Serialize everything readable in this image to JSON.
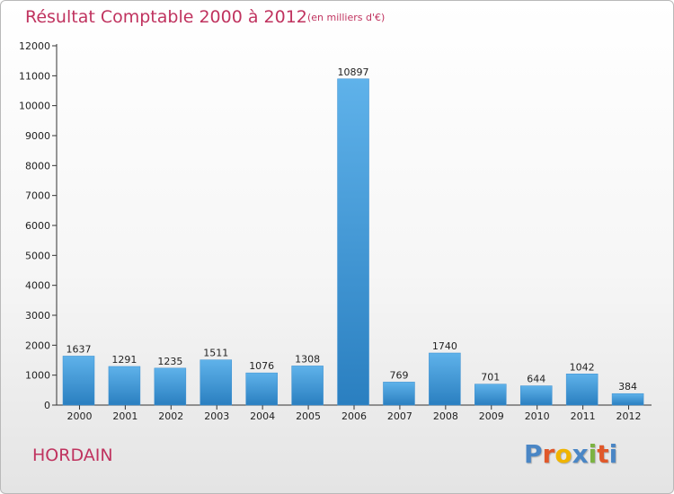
{
  "header": {
    "title": "Résultat Comptable 2000 à 2012",
    "subtitle": "(en milliers d'€)"
  },
  "footer": {
    "town": "HORDAIN",
    "logo": "Proxiti"
  },
  "colors": {
    "title": "#c0335f",
    "bar_top": "#5fb2ea",
    "bar_bottom": "#2a7fc0",
    "logo_letters": [
      "#4a86c5",
      "#e0582a",
      "#f0b400",
      "#4a86c5",
      "#7cb342",
      "#e0582a",
      "#4a86c5"
    ]
  },
  "chart_data": {
    "type": "bar",
    "title": "Résultat Comptable 2000 à 2012",
    "subtitle": "(en milliers d'€)",
    "xlabel": "",
    "ylabel": "",
    "categories": [
      "2000",
      "2001",
      "2002",
      "2003",
      "2004",
      "2005",
      "2006",
      "2007",
      "2008",
      "2009",
      "2010",
      "2011",
      "2012"
    ],
    "values": [
      1637,
      1291,
      1235,
      1511,
      1076,
      1308,
      10897,
      769,
      1740,
      701,
      644,
      1042,
      384
    ],
    "value_labels": [
      "1637",
      "1291",
      "1235",
      "1511",
      "1076",
      "1308",
      "10897",
      "769",
      "1740",
      "701",
      "644",
      "1042",
      "384"
    ],
    "ylim": [
      0,
      12000
    ],
    "yticks": [
      0,
      1000,
      2000,
      3000,
      4000,
      5000,
      6000,
      7000,
      8000,
      9000,
      10000,
      11000,
      12000
    ],
    "ytick_labels": [
      "0",
      "1000",
      "2000",
      "3000",
      "4000",
      "5000",
      "6000",
      "7000",
      "8000",
      "9000",
      "10000",
      "11000",
      "12000"
    ],
    "grid": false,
    "legend": "none"
  }
}
